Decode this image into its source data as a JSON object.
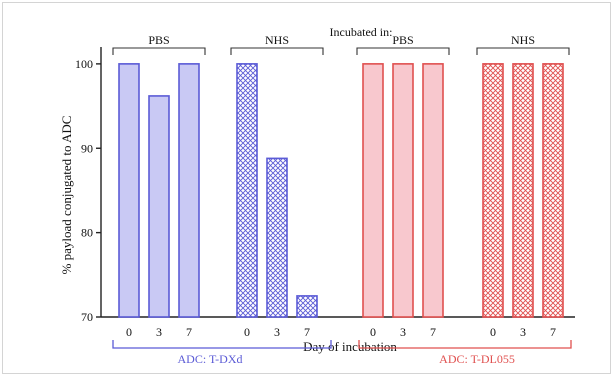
{
  "chart_data": {
    "type": "bar",
    "title": "Incubated in:",
    "ylabel": "% payload conjugated to ADC",
    "xlabel": "Day of incubation",
    "ylim": [
      70,
      102
    ],
    "yticks": [
      70,
      80,
      90,
      100
    ],
    "groups": [
      {
        "label": "PBS",
        "adc": "ADC: T-DXd",
        "pattern": "solid",
        "color": "#5b5bd6",
        "fill": "#c9c9f4",
        "days": [
          "0",
          "3",
          "7"
        ],
        "values": [
          100,
          96.2,
          100
        ]
      },
      {
        "label": "NHS",
        "adc": "ADC: T-DXd",
        "pattern": "crosshatch",
        "color": "#5b5bd6",
        "fill": "#c9c9f4",
        "days": [
          "0",
          "3",
          "7"
        ],
        "values": [
          100,
          88.8,
          72.5
        ]
      },
      {
        "label": "PBS",
        "adc": "ADC: T-DL055",
        "pattern": "solid",
        "color": "#e0504f",
        "fill": "#f8c8ce",
        "days": [
          "0",
          "3",
          "7"
        ],
        "values": [
          100,
          100,
          100
        ]
      },
      {
        "label": "NHS",
        "adc": "ADC: T-DL055",
        "pattern": "crosshatch",
        "color": "#e0504f",
        "fill": "#f8c8ce",
        "days": [
          "0",
          "3",
          "7"
        ],
        "values": [
          100,
          100,
          100
        ]
      }
    ],
    "adc_groups": [
      {
        "label": "ADC: T-DXd",
        "color": "#5b5bd6"
      },
      {
        "label": "ADC: T-DL055",
        "color": "#e0504f"
      }
    ],
    "grid": false
  }
}
